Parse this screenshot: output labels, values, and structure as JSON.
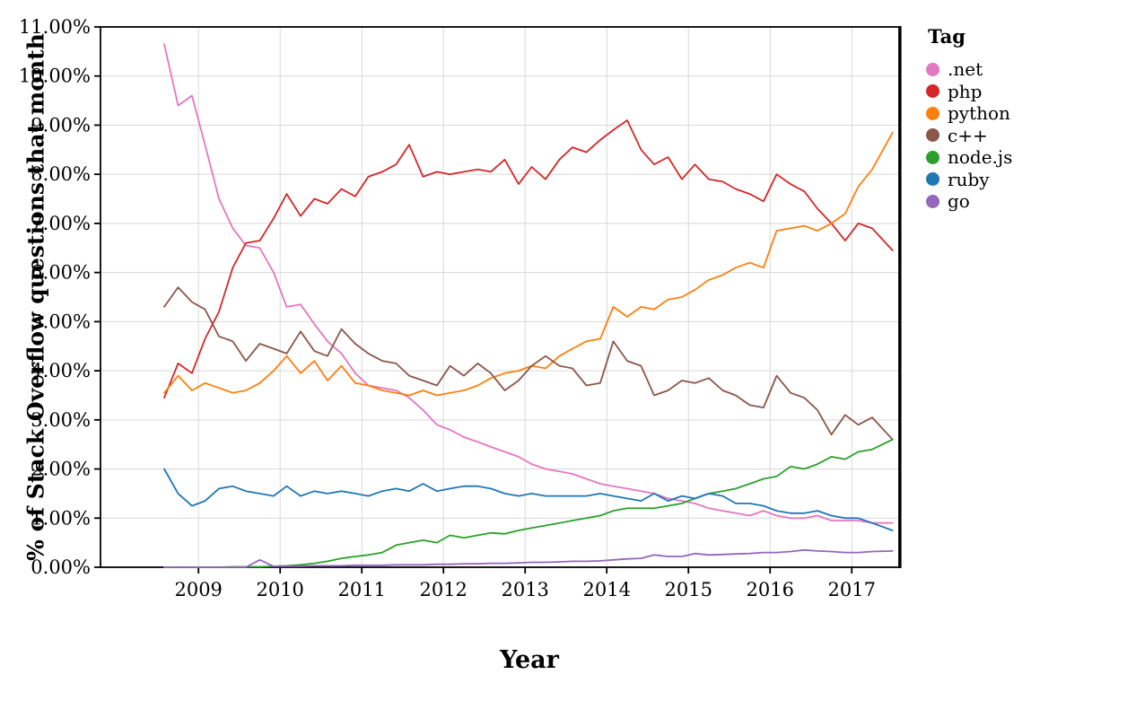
{
  "page": {
    "background": "#ffffff"
  },
  "legend": {
    "title": "Tag"
  },
  "chart_data": {
    "type": "line",
    "title": "",
    "xlabel": "Year",
    "ylabel": "% of Stack Overflow questions that month",
    "legend_title": "Tag",
    "legend_position": "right",
    "grid": true,
    "grid_color": "#d8d8d8",
    "axis_color": "#000000",
    "xlim": [
      2007.8,
      2017.58
    ],
    "ylim": [
      0,
      11
    ],
    "x_ticks": {
      "values": [
        2009,
        2010,
        2011,
        2012,
        2013,
        2014,
        2015,
        2016,
        2017
      ],
      "labels": [
        "2009",
        "2010",
        "2011",
        "2012",
        "2013",
        "2014",
        "2015",
        "2016",
        "2017"
      ]
    },
    "y_ticks": {
      "values": [
        0,
        1,
        2,
        3,
        4,
        5,
        6,
        7,
        8,
        9,
        10,
        11
      ],
      "labels": [
        "0.00%",
        "1.00%",
        "2.00%",
        "3.00%",
        "4.00%",
        "5.00%",
        "6.00%",
        "7.00%",
        "8.00%",
        "9.00%",
        "10.00%",
        "11.00%"
      ]
    },
    "x": [
      2008.58,
      2008.75,
      2008.92,
      2009.08,
      2009.25,
      2009.42,
      2009.58,
      2009.75,
      2009.92,
      2010.08,
      2010.25,
      2010.42,
      2010.58,
      2010.75,
      2010.92,
      2011.08,
      2011.25,
      2011.42,
      2011.58,
      2011.75,
      2011.92,
      2012.08,
      2012.25,
      2012.42,
      2012.58,
      2012.75,
      2012.92,
      2013.08,
      2013.25,
      2013.42,
      2013.58,
      2013.75,
      2013.92,
      2014.08,
      2014.25,
      2014.42,
      2014.58,
      2014.75,
      2014.92,
      2015.08,
      2015.25,
      2015.42,
      2015.58,
      2015.75,
      2015.92,
      2016.08,
      2016.25,
      2016.42,
      2016.58,
      2016.75,
      2016.92,
      2017.08,
      2017.25,
      2017.5
    ],
    "series": [
      {
        "name": ".net",
        "color": "#e377c2",
        "values": [
          10.65,
          9.4,
          9.6,
          8.6,
          7.5,
          6.9,
          6.55,
          6.5,
          6.0,
          5.3,
          5.35,
          4.95,
          4.6,
          4.35,
          3.95,
          3.7,
          3.65,
          3.6,
          3.45,
          3.2,
          2.9,
          2.8,
          2.65,
          2.55,
          2.45,
          2.35,
          2.25,
          2.1,
          2.0,
          1.95,
          1.9,
          1.8,
          1.7,
          1.65,
          1.6,
          1.55,
          1.5,
          1.4,
          1.35,
          1.3,
          1.2,
          1.15,
          1.1,
          1.05,
          1.15,
          1.05,
          1.0,
          1.0,
          1.05,
          0.95,
          0.95,
          0.95,
          0.9,
          0.9
        ]
      },
      {
        "name": "php",
        "color": "#d62728",
        "values": [
          3.45,
          4.15,
          3.95,
          4.65,
          5.2,
          6.1,
          6.6,
          6.65,
          7.1,
          7.6,
          7.15,
          7.5,
          7.4,
          7.7,
          7.55,
          7.95,
          8.05,
          8.2,
          8.6,
          7.95,
          8.05,
          8.0,
          8.05,
          8.1,
          8.05,
          8.3,
          7.8,
          8.15,
          7.9,
          8.3,
          8.55,
          8.45,
          8.7,
          8.9,
          9.1,
          8.5,
          8.2,
          8.35,
          7.9,
          8.2,
          7.9,
          7.85,
          7.7,
          7.6,
          7.45,
          8.0,
          7.8,
          7.65,
          7.3,
          7.0,
          6.65,
          7.0,
          6.9,
          6.45
        ]
      },
      {
        "name": "python",
        "color": "#ff7f0e",
        "values": [
          3.55,
          3.9,
          3.6,
          3.75,
          3.65,
          3.55,
          3.6,
          3.75,
          4.0,
          4.3,
          3.95,
          4.2,
          3.8,
          4.1,
          3.75,
          3.7,
          3.6,
          3.55,
          3.5,
          3.6,
          3.5,
          3.55,
          3.6,
          3.7,
          3.85,
          3.95,
          4.0,
          4.1,
          4.05,
          4.3,
          4.45,
          4.6,
          4.65,
          5.3,
          5.1,
          5.3,
          5.25,
          5.45,
          5.5,
          5.65,
          5.85,
          5.95,
          6.1,
          6.2,
          6.1,
          6.85,
          6.9,
          6.95,
          6.85,
          7.0,
          7.2,
          7.75,
          8.1,
          8.85
        ]
      },
      {
        "name": "c++",
        "color": "#8c564b",
        "values": [
          5.3,
          5.7,
          5.4,
          5.25,
          4.7,
          4.6,
          4.2,
          4.55,
          4.45,
          4.35,
          4.8,
          4.4,
          4.3,
          4.85,
          4.55,
          4.35,
          4.2,
          4.15,
          3.9,
          3.8,
          3.7,
          4.1,
          3.9,
          4.15,
          3.95,
          3.6,
          3.8,
          4.1,
          4.3,
          4.1,
          4.05,
          3.7,
          3.75,
          4.6,
          4.2,
          4.1,
          3.5,
          3.6,
          3.8,
          3.75,
          3.85,
          3.6,
          3.5,
          3.3,
          3.25,
          3.9,
          3.55,
          3.45,
          3.2,
          2.7,
          3.1,
          2.9,
          3.05,
          2.6
        ]
      },
      {
        "name": "node.js",
        "color": "#2ca02c",
        "values": [
          0.0,
          0.0,
          0.0,
          0.0,
          0.0,
          0.01,
          0.01,
          0.01,
          0.02,
          0.03,
          0.05,
          0.08,
          0.12,
          0.18,
          0.22,
          0.25,
          0.3,
          0.45,
          0.5,
          0.55,
          0.5,
          0.65,
          0.6,
          0.65,
          0.7,
          0.68,
          0.75,
          0.8,
          0.85,
          0.9,
          0.95,
          1.0,
          1.05,
          1.15,
          1.2,
          1.2,
          1.2,
          1.25,
          1.3,
          1.4,
          1.5,
          1.55,
          1.6,
          1.7,
          1.8,
          1.85,
          2.05,
          2.0,
          2.1,
          2.25,
          2.2,
          2.35,
          2.4,
          2.6
        ]
      },
      {
        "name": "ruby",
        "color": "#1f77b4",
        "values": [
          2.0,
          1.5,
          1.25,
          1.35,
          1.6,
          1.65,
          1.55,
          1.5,
          1.45,
          1.65,
          1.45,
          1.55,
          1.5,
          1.55,
          1.5,
          1.45,
          1.55,
          1.6,
          1.55,
          1.7,
          1.55,
          1.6,
          1.65,
          1.65,
          1.6,
          1.5,
          1.45,
          1.5,
          1.45,
          1.45,
          1.45,
          1.45,
          1.5,
          1.45,
          1.4,
          1.35,
          1.5,
          1.35,
          1.45,
          1.4,
          1.5,
          1.45,
          1.3,
          1.3,
          1.25,
          1.15,
          1.1,
          1.1,
          1.15,
          1.05,
          1.0,
          1.0,
          0.9,
          0.75
        ]
      },
      {
        "name": "go",
        "color": "#9467bd",
        "values": [
          0.0,
          0.0,
          0.0,
          0.0,
          0.0,
          0.0,
          0.0,
          0.15,
          0.02,
          0.02,
          0.02,
          0.03,
          0.03,
          0.03,
          0.04,
          0.04,
          0.04,
          0.05,
          0.05,
          0.05,
          0.06,
          0.06,
          0.07,
          0.07,
          0.08,
          0.08,
          0.09,
          0.1,
          0.1,
          0.11,
          0.12,
          0.12,
          0.13,
          0.15,
          0.17,
          0.18,
          0.25,
          0.22,
          0.22,
          0.28,
          0.25,
          0.26,
          0.27,
          0.28,
          0.3,
          0.3,
          0.32,
          0.35,
          0.33,
          0.32,
          0.3,
          0.3,
          0.32,
          0.33
        ]
      }
    ]
  }
}
